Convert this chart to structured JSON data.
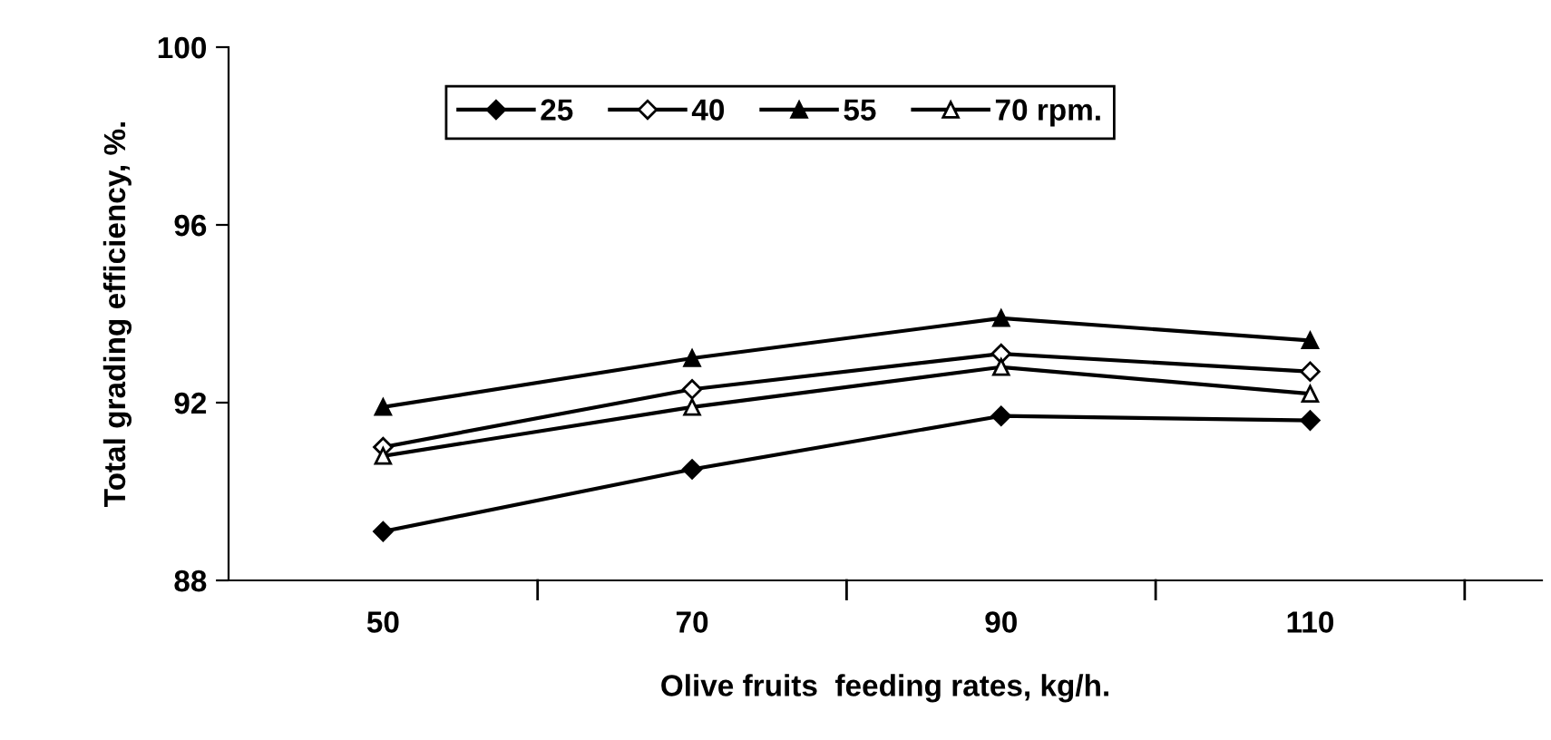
{
  "chart_data": {
    "type": "line",
    "xlabel": "Olive fruits  feeding rates, kg/h.",
    "ylabel": "Total grading efficiency, %.",
    "categories": [
      "50",
      "70",
      "90",
      "110"
    ],
    "ylim": [
      88,
      100
    ],
    "yticks": [
      88,
      92,
      96,
      100
    ],
    "grid": false,
    "legend": "top",
    "line_style": "solid",
    "series": [
      {
        "name": "25",
        "color": "#000000",
        "marker": "diamond",
        "values": [
          89.1,
          90.5,
          91.7,
          91.6
        ]
      },
      {
        "name": "40",
        "color": "#000000",
        "marker": "diamond",
        "values": [
          91.0,
          92.3,
          93.1,
          92.7
        ]
      },
      {
        "name": "55",
        "color": "#000000",
        "marker": "triangle",
        "values": [
          91.9,
          93.0,
          93.9,
          93.4
        ]
      },
      {
        "name": "70 rpm.",
        "color": "#000000",
        "marker": "triangle",
        "values": [
          90.8,
          91.9,
          92.8,
          92.2
        ]
      }
    ]
  }
}
